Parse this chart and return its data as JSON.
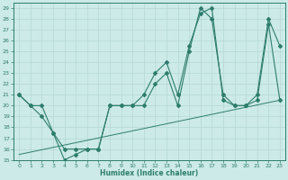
{
  "xlabel": "Humidex (Indice chaleur)",
  "xlim": [
    -0.5,
    23.5
  ],
  "ylim": [
    15,
    29.5
  ],
  "yticks": [
    15,
    16,
    17,
    18,
    19,
    20,
    21,
    22,
    23,
    24,
    25,
    26,
    27,
    28,
    29
  ],
  "xticks": [
    0,
    1,
    2,
    3,
    4,
    5,
    6,
    7,
    8,
    9,
    10,
    11,
    12,
    13,
    14,
    15,
    16,
    17,
    18,
    19,
    20,
    21,
    22,
    23
  ],
  "bg_color": "#cceae7",
  "line_color": "#2e7d6e",
  "grid_color": "#b8dbd8",
  "line1_x": [
    0,
    1,
    2,
    3,
    4,
    5,
    6,
    7,
    8,
    9,
    10,
    11,
    12,
    13,
    14,
    15,
    16,
    17,
    18,
    19,
    20,
    21,
    22,
    23
  ],
  "line1_y": [
    21,
    20,
    19,
    17.5,
    16,
    16,
    16,
    16,
    20,
    20,
    20,
    20,
    22,
    23,
    20,
    25,
    29,
    28,
    21,
    20,
    20,
    20.5,
    27.5,
    20.5
  ],
  "line2_x": [
    0,
    1,
    2,
    3,
    4,
    5,
    6,
    7,
    8,
    9,
    10,
    11,
    12,
    13,
    14,
    15,
    16,
    17,
    18,
    19,
    20,
    21,
    22,
    23
  ],
  "line2_y": [
    21,
    20,
    20,
    17.5,
    15,
    15.5,
    16,
    16,
    20,
    20,
    20,
    21,
    23,
    24,
    21,
    25.5,
    28.5,
    29,
    20.5,
    20,
    20,
    21,
    28,
    25.5
  ],
  "line3_x": [
    0,
    23
  ],
  "line3_y": [
    15.5,
    20.5
  ]
}
